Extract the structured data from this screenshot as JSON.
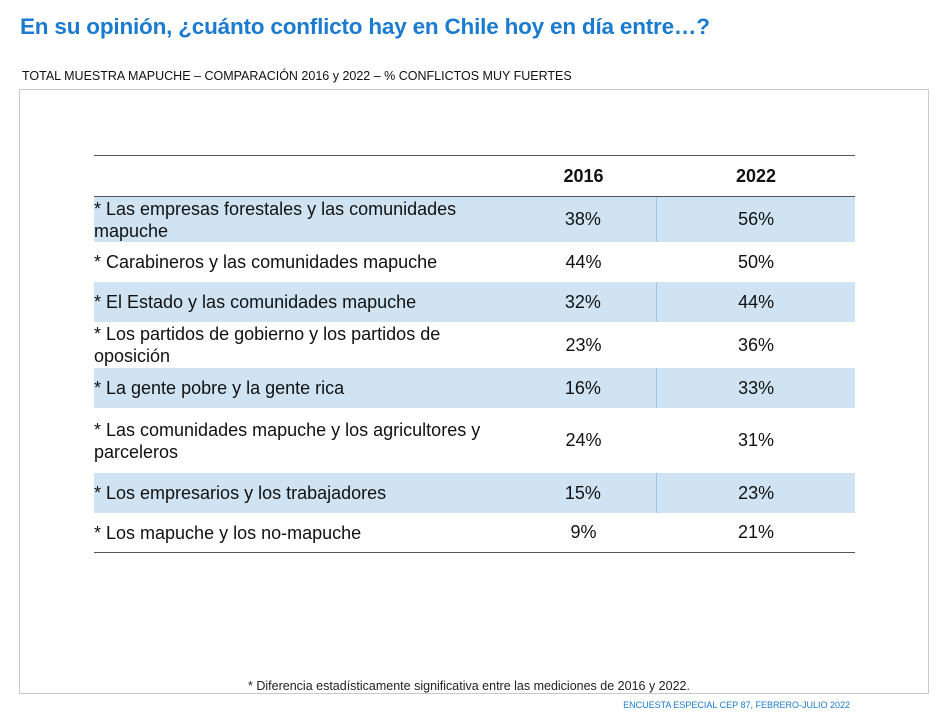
{
  "title": "En su opinión, ¿cuánto conflicto hay en Chile hoy en día entre…?",
  "subtitle": "TOTAL MUESTRA MAPUCHE – COMPARACIÓN 2016 y 2022 – % CONFLICTOS MUY FUERTES",
  "table": {
    "columns": [
      "",
      "2016",
      "2022"
    ],
    "rows": [
      {
        "label": "* Las empresas forestales y las comunidades mapuche",
        "v2016": "38%",
        "v2022": "56%"
      },
      {
        "label": "* Carabineros y las comunidades mapuche",
        "v2016": "44%",
        "v2022": "50%"
      },
      {
        "label": "* El Estado y las comunidades mapuche",
        "v2016": "32%",
        "v2022": "44%"
      },
      {
        "label": "* Los partidos de gobierno y los partidos de oposición",
        "v2016": "23%",
        "v2022": "36%"
      },
      {
        "label": "* La gente pobre y la gente rica",
        "v2016": "16%",
        "v2022": "33%"
      },
      {
        "label": "* Las comunidades mapuche y los agricultores y parceleros",
        "v2016": "24%",
        "v2022": "31%"
      },
      {
        "label": "* Los empresarios y los trabajadores",
        "v2016": "15%",
        "v2022": "23%"
      },
      {
        "label": "* Los mapuche y los no-mapuche",
        "v2016": "9%",
        "v2022": "21%"
      }
    ]
  },
  "footnote": "* Diferencia estadísticamente significativa entre las mediciones de 2016 y 2022.",
  "source": "ENCUESTA ESPECIAL CEP 87, FEBRERO-JULIO 2022",
  "colors": {
    "accent": "#1a7bd0",
    "row_shade": "#cfe3f3"
  }
}
